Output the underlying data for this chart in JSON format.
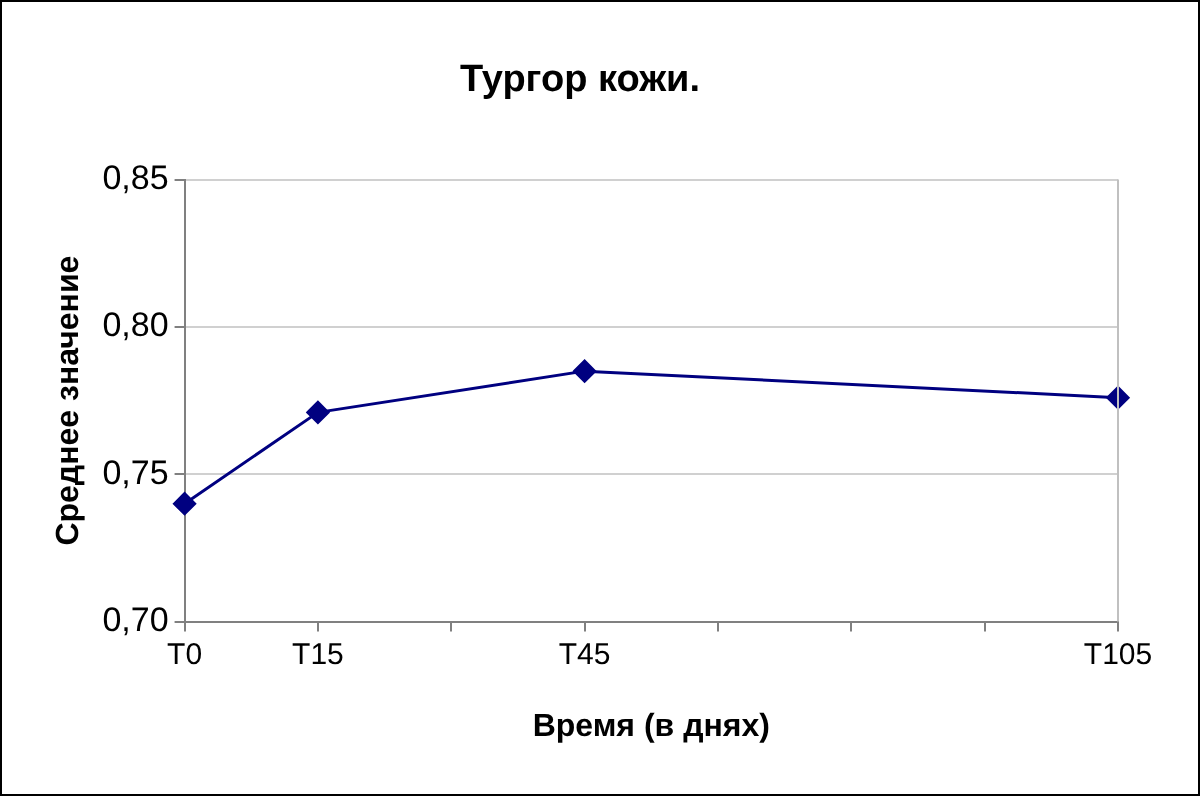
{
  "chart_data": {
    "type": "line",
    "title": "Тургор кожи.",
    "xlabel": "Время (в днях)",
    "ylabel": "Среднее значение",
    "categories": [
      "T0",
      "T15",
      null,
      "T45",
      null,
      null,
      null,
      "T105"
    ],
    "series": [
      {
        "color": "#000080",
        "values": [
          0.74,
          0.771,
          null,
          0.785,
          null,
          null,
          null,
          0.776
        ]
      }
    ],
    "ylim": [
      0.7,
      0.85
    ],
    "yticks": [
      {
        "value": 0.7,
        "label": "0,70"
      },
      {
        "value": 0.75,
        "label": "0,75"
      },
      {
        "value": 0.8,
        "label": "0,80"
      },
      {
        "value": 0.85,
        "label": "0,85"
      }
    ],
    "grid": "y",
    "legend": false,
    "marker": "diamond",
    "line_style": "solid"
  }
}
